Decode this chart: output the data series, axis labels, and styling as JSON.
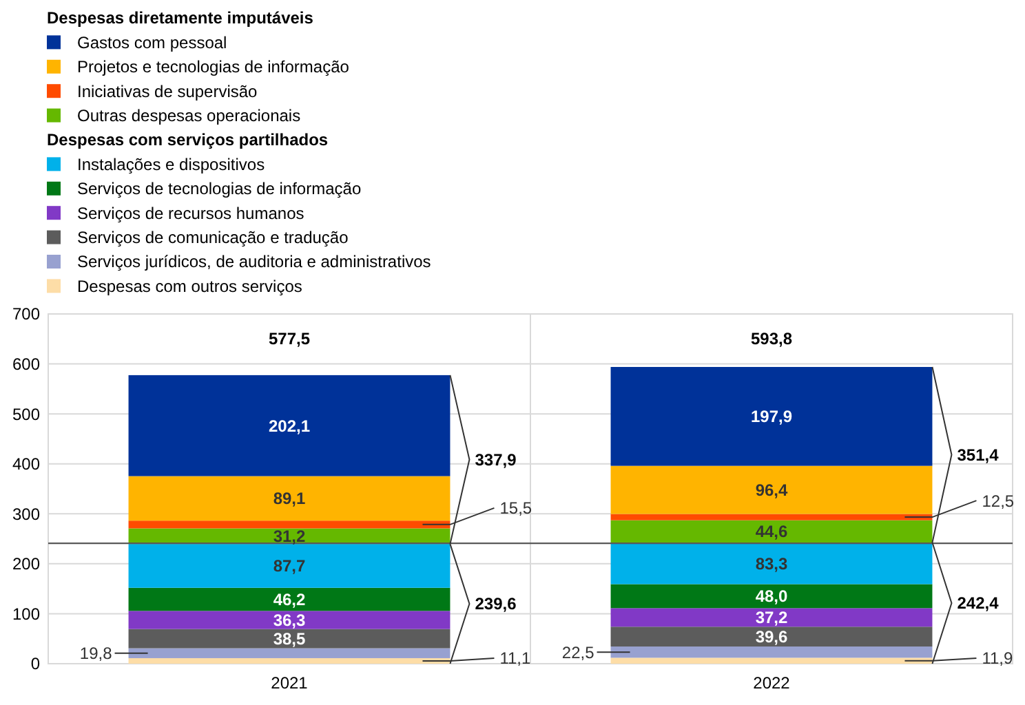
{
  "chart_data": {
    "type": "bar",
    "stacked": true,
    "categories": [
      "2021",
      "2022"
    ],
    "series": [
      {
        "name": "Despesas com outros serviços",
        "color": "#fddda7",
        "values": [
          11.1,
          11.9
        ],
        "value_labels": [
          "11,1",
          "11,9"
        ]
      },
      {
        "name": "Serviços jurídicos, de auditoria e administrativos",
        "color": "#98a1d0",
        "values": [
          19.8,
          22.5
        ],
        "value_labels": [
          "19,8",
          "22,5"
        ]
      },
      {
        "name": "Serviços de comunicação e tradução",
        "color": "#5c5c5c",
        "values": [
          38.5,
          39.6
        ],
        "value_labels": [
          "38,5",
          "39,6"
        ]
      },
      {
        "name": "Serviços de recursos humanos",
        "color": "#8139c6",
        "values": [
          36.3,
          37.2
        ],
        "value_labels": [
          "36,3",
          "37,2"
        ]
      },
      {
        "name": "Serviços de tecnologias de informação",
        "color": "#007816",
        "values": [
          46.2,
          48.0
        ],
        "value_labels": [
          "46,2",
          "48,0"
        ]
      },
      {
        "name": "Instalações e dispositivos",
        "color": "#00b1ea",
        "values": [
          87.7,
          83.3
        ],
        "value_labels": [
          "87,7",
          "83,3"
        ]
      },
      {
        "name": "Outras despesas operacionais",
        "color": "#65b800",
        "values": [
          31.2,
          44.6
        ],
        "value_labels": [
          "31,2",
          "44,6"
        ]
      },
      {
        "name": "Iniciativas de supervisão",
        "color": "#ff4b00",
        "values": [
          15.5,
          12.5
        ],
        "value_labels": [
          "15,5",
          "12,5"
        ]
      },
      {
        "name": "Projetos e tecnologias de informação",
        "color": "#ffb400",
        "values": [
          89.1,
          96.4
        ],
        "value_labels": [
          "89,1",
          "96,4"
        ]
      },
      {
        "name": "Gastos com pessoal",
        "color": "#003299",
        "values": [
          202.1,
          197.9
        ],
        "value_labels": [
          "202,1",
          "197,9"
        ]
      }
    ],
    "totals": [
      "577,5",
      "593,8"
    ],
    "annotations": [
      "Despesas diretamente imputáveis",
      "Despesas com serviços partilhados",
      "337,9",
      "239,6",
      "351,4",
      "242,4"
    ],
    "ref_lines": [
      {
        "axis": "y",
        "value": 241,
        "color": "#595959"
      }
    ],
    "ylim": [
      0,
      700
    ],
    "yticks": [
      0,
      100,
      200,
      300,
      400,
      500,
      600,
      700
    ],
    "grid": "y",
    "legend": "top left"
  }
}
